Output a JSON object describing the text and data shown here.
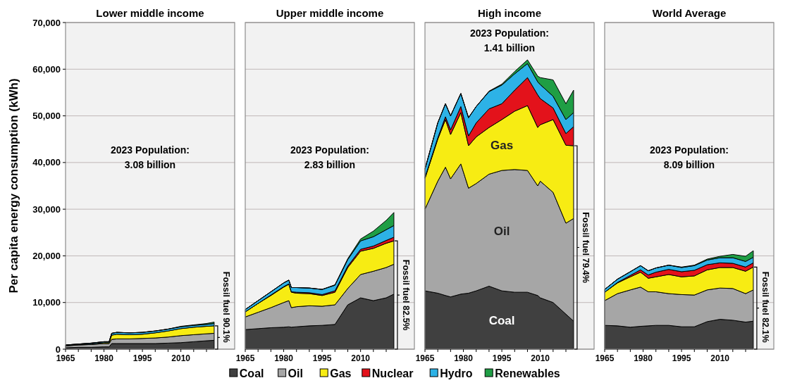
{
  "chart_data": [
    {
      "type": "area",
      "stacked": true,
      "title": "Lower middle income",
      "ylabel": "Per capita energy consumption (kWh)",
      "grid": "y",
      "legend": "bottom",
      "x": [
        1965,
        1970,
        1975,
        1980,
        1982,
        1983,
        1985,
        1990,
        1995,
        2000,
        2005,
        2010,
        2015,
        2020,
        2023
      ],
      "xlim": [
        1965,
        2031
      ],
      "xticks": [
        1965,
        {
          "value": 1970,
          "label": null
        },
        {
          "value": 1975,
          "label": null
        },
        1980,
        {
          "value": 1985,
          "label": null
        },
        {
          "value": 1990,
          "label": null
        },
        1995,
        {
          "value": 2000,
          "label": null
        },
        {
          "value": 2005,
          "label": null
        },
        2010,
        {
          "value": 2015,
          "label": null
        },
        {
          "value": 2020,
          "label": null
        }
      ],
      "ylim": [
        0,
        70000
      ],
      "yticks": [
        0,
        {
          "value": 10000,
          "label": "10,000"
        },
        {
          "value": 20000,
          "label": "20,000"
        },
        {
          "value": 30000,
          "label": "30,000"
        },
        {
          "value": 40000,
          "label": "40,000"
        },
        {
          "value": 50000,
          "label": "50,000"
        },
        {
          "value": 60000,
          "label": "60,000"
        },
        {
          "value": 70000,
          "label": "70,000"
        }
      ],
      "annotations": [
        "2023 Population:\n3.08 billion",
        "Fossil fuel 90.1%"
      ],
      "series": [
        {
          "name": "Coal",
          "color": "#404040",
          "values": [
            300,
            400,
            400,
            500,
            500,
            1200,
            1200,
            1200,
            1200,
            1200,
            1300,
            1400,
            1600,
            1800,
            1900
          ]
        },
        {
          "name": "Oil",
          "color": "#a6a6a6",
          "values": [
            400,
            500,
            600,
            700,
            700,
            900,
            1000,
            1000,
            1100,
            1200,
            1300,
            1500,
            1500,
            1500,
            1500
          ]
        },
        {
          "name": "Gas",
          "color": "#f7ec13",
          "values": [
            100,
            100,
            100,
            200,
            200,
            900,
            1000,
            900,
            900,
            1100,
            1300,
            1500,
            1600,
            1600,
            1600
          ]
        },
        {
          "name": "Nuclear",
          "color": "#e3121b",
          "values": [
            null,
            null,
            null,
            null,
            null,
            null,
            null,
            null,
            null,
            null,
            null,
            null,
            null,
            null,
            null
          ]
        },
        {
          "name": "Hydro",
          "color": "#2db2e6",
          "values": [
            100,
            100,
            200,
            200,
            200,
            400,
            400,
            400,
            400,
            400,
            400,
            400,
            400,
            400,
            500
          ]
        },
        {
          "name": "Renewables",
          "color": "#1f9e45",
          "values": [
            0,
            0,
            0,
            0,
            0,
            0,
            0,
            0,
            0,
            0,
            0,
            100,
            100,
            200,
            300
          ]
        }
      ]
    },
    {
      "type": "area",
      "stacked": true,
      "title": "Upper middle income",
      "grid": "y",
      "tick_labels": "x",
      "x": [
        1965,
        1970,
        1975,
        1980,
        1982,
        1983,
        1985,
        1990,
        1995,
        2000,
        2005,
        2010,
        2015,
        2020,
        2023
      ],
      "xlim": [
        1965,
        2031
      ],
      "xticks": [
        1965,
        {
          "value": 1970,
          "label": null
        },
        {
          "value": 1975,
          "label": null
        },
        1980,
        {
          "value": 1985,
          "label": null
        },
        {
          "value": 1990,
          "label": null
        },
        1995,
        {
          "value": 2000,
          "label": null
        },
        {
          "value": 2005,
          "label": null
        },
        2010,
        {
          "value": 2015,
          "label": null
        },
        {
          "value": 2020,
          "label": null
        }
      ],
      "ylim": [
        0,
        70000
      ],
      "yticks": [
        0,
        10000,
        20000,
        30000,
        40000,
        50000,
        60000,
        70000
      ],
      "annotations": [
        "2023 Population:\n2.83 billion",
        "Fossil fuel 82.5%"
      ],
      "series": [
        {
          "color": "#404040",
          "values": [
            4200,
            4400,
            4600,
            4700,
            4800,
            4700,
            4800,
            5000,
            5100,
            5300,
            9500,
            11000,
            10400,
            11000,
            11800
          ]
        },
        {
          "color": "#a6a6a6",
          "values": [
            2700,
            3500,
            4300,
            5300,
            5600,
            4200,
            4300,
            4300,
            4100,
            4200,
            3500,
            5000,
            6300,
            6500,
            6400
          ]
        },
        {
          "color": "#f7ec13",
          "values": [
            1100,
            1900,
            2600,
            3300,
            3500,
            3300,
            2900,
            2600,
            2300,
            2700,
            4500,
            5000,
            4900,
            5200,
            5000
          ]
        },
        {
          "color": "#e3121b",
          "values": [
            0,
            0,
            100,
            100,
            100,
            100,
            200,
            200,
            200,
            300,
            300,
            400,
            500,
            600,
            800
          ]
        },
        {
          "color": "#2db2e6",
          "values": [
            500,
            600,
            700,
            800,
            800,
            900,
            1000,
            1000,
            1100,
            1200,
            1400,
            1800,
            2000,
            2300,
            2500
          ]
        },
        {
          "color": "#1f9e45",
          "values": [
            0,
            0,
            0,
            0,
            0,
            0,
            0,
            0,
            0,
            100,
            200,
            400,
            1200,
            2000,
            2800
          ]
        }
      ]
    },
    {
      "type": "area",
      "stacked": true,
      "title": "High income",
      "grid": "y",
      "tick_labels": "x",
      "x": [
        1965,
        1970,
        1973,
        1975,
        1979,
        1982,
        1985,
        1990,
        1995,
        2000,
        2005,
        2009,
        2010,
        2015,
        2020,
        2023
      ],
      "xlim": [
        1965,
        2031
      ],
      "xticks": [
        1965,
        {
          "value": 1970,
          "label": null
        },
        {
          "value": 1975,
          "label": null
        },
        1980,
        {
          "value": 1985,
          "label": null
        },
        {
          "value": 1990,
          "label": null
        },
        1995,
        {
          "value": 2000,
          "label": null
        },
        {
          "value": 2005,
          "label": null
        },
        2010,
        {
          "value": 2015,
          "label": null
        },
        {
          "value": 2020,
          "label": null
        }
      ],
      "ylim": [
        0,
        70000
      ],
      "yticks": [
        0,
        10000,
        20000,
        30000,
        40000,
        50000,
        60000,
        70000
      ],
      "annotations": [
        "2023 Population:\n1.41 billion",
        "Fossil fuel 79.4%",
        "Gas",
        "Oil",
        "Coal"
      ],
      "series": [
        {
          "color": "#404040",
          "values": [
            12500,
            12000,
            11500,
            11200,
            11800,
            12000,
            12500,
            13500,
            12500,
            12200,
            12200,
            11500,
            11000,
            10000,
            7500,
            6000
          ]
        },
        {
          "color": "#a6a6a6",
          "values": [
            17500,
            24000,
            27500,
            25300,
            27900,
            22500,
            23000,
            24000,
            25800,
            26300,
            26100,
            23500,
            25000,
            23600,
            19500,
            22000
          ]
        },
        {
          "color": "#f7ec13",
          "values": [
            6600,
            9000,
            10200,
            9500,
            11000,
            9100,
            10000,
            10000,
            10900,
            12500,
            13900,
            12500,
            12100,
            15600,
            16700,
            15600
          ]
        },
        {
          "color": "#e3121b",
          "values": [
            200,
            300,
            600,
            1000,
            1300,
            2100,
            3000,
            4000,
            3400,
            4500,
            6000,
            7000,
            5600,
            2500,
            2500,
            4100
          ]
        },
        {
          "color": "#2db2e6",
          "values": [
            1800,
            3200,
            2800,
            3000,
            2800,
            3900,
            3500,
            3700,
            4000,
            3500,
            3000,
            2800,
            3000,
            2500,
            3000,
            3000
          ]
        },
        {
          "color": "#1f9e45",
          "values": [
            0,
            0,
            0,
            0,
            0,
            0,
            0,
            100,
            200,
            500,
            800,
            1200,
            1500,
            3500,
            3400,
            4800
          ]
        }
      ]
    },
    {
      "type": "area",
      "stacked": true,
      "title": "World Average",
      "grid": "y",
      "tick_labels": "x",
      "x": [
        1965,
        1970,
        1975,
        1979,
        1982,
        1985,
        1990,
        1995,
        2000,
        2005,
        2010,
        2015,
        2020,
        2023
      ],
      "xlim": [
        1965,
        2031
      ],
      "xticks": [
        1965,
        {
          "value": 1970,
          "label": null
        },
        {
          "value": 1975,
          "label": null
        },
        1980,
        {
          "value": 1985,
          "label": null
        },
        {
          "value": 1990,
          "label": null
        },
        1995,
        {
          "value": 2000,
          "label": null
        },
        {
          "value": 2005,
          "label": null
        },
        2010,
        {
          "value": 2015,
          "label": null
        },
        {
          "value": 2020,
          "label": null
        }
      ],
      "ylim": [
        0,
        70000
      ],
      "yticks": [
        0,
        10000,
        20000,
        30000,
        40000,
        50000,
        60000,
        70000
      ],
      "annotations": [
        "2023 Population:\n8.09 billion",
        "Fossil fuel 82.1%"
      ],
      "series": [
        {
          "color": "#404040",
          "values": [
            5100,
            5000,
            4700,
            4900,
            5000,
            5100,
            5100,
            4800,
            4800,
            5900,
            6400,
            6200,
            5800,
            6000
          ]
        },
        {
          "color": "#a6a6a6",
          "values": [
            5300,
            6900,
            8000,
            8400,
            7300,
            7200,
            6800,
            6900,
            6800,
            6800,
            6700,
            6800,
            6100,
            6700
          ]
        },
        {
          "color": "#f7ec13",
          "values": [
            1800,
            2300,
            2800,
            3200,
            2900,
            3200,
            4100,
            3800,
            4100,
            4300,
            4400,
            4500,
            4800,
            4900
          ]
        },
        {
          "color": "#e3121b",
          "values": [
            0,
            100,
            300,
            500,
            700,
            1000,
            1100,
            1100,
            1200,
            1100,
            1000,
            900,
            900,
            900
          ]
        },
        {
          "color": "#2db2e6",
          "values": [
            600,
            700,
            800,
            900,
            900,
            900,
            900,
            900,
            1000,
            1000,
            1100,
            1200,
            1200,
            1200
          ]
        },
        {
          "color": "#1f9e45",
          "values": [
            0,
            0,
            0,
            0,
            0,
            0,
            0,
            100,
            100,
            200,
            300,
            700,
            1100,
            1400
          ]
        }
      ]
    }
  ]
}
